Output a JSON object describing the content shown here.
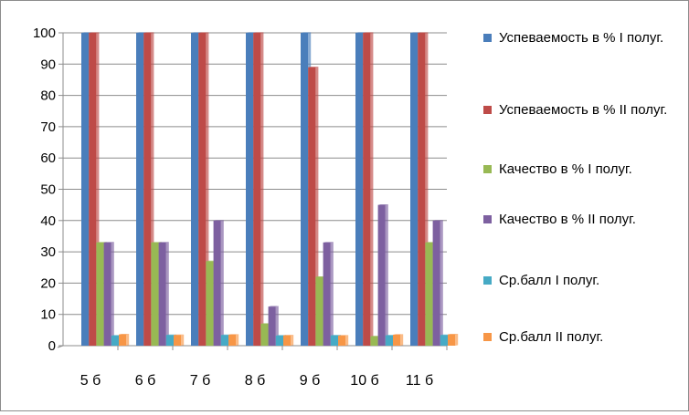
{
  "chart_data": {
    "type": "bar",
    "title": "",
    "xlabel": "",
    "ylabel": "",
    "categories": [
      "5 б",
      "6 б",
      "7 б",
      "8 б",
      "9 б",
      "10 б",
      "11 б"
    ],
    "ylim": [
      0,
      100
    ],
    "yticks": [
      0,
      10,
      20,
      30,
      40,
      50,
      60,
      70,
      80,
      90,
      100
    ],
    "grid": true,
    "legend_position": "right",
    "series": [
      {
        "name": "Успеваемость в % I полуг.",
        "color": "#4a7ebb",
        "values": [
          100,
          100,
          100,
          100,
          100,
          100,
          100
        ]
      },
      {
        "name": "Успеваемость в % II полуг.",
        "color": "#be4b48",
        "values": [
          100,
          100,
          100,
          100,
          89,
          100,
          100
        ]
      },
      {
        "name": "Качество в % I полуг.",
        "color": "#98b954",
        "values": [
          33,
          33,
          27,
          7,
          22,
          3,
          33
        ]
      },
      {
        "name": "Качество в % II полуг.",
        "color": "#7d60a0",
        "values": [
          33,
          33,
          40,
          12.5,
          33,
          45,
          40
        ]
      },
      {
        "name": "Ср.балл I полуг.",
        "color": "#46aac5",
        "values": [
          3.2,
          3.4,
          3.4,
          3.2,
          3.3,
          3.3,
          3.4
        ]
      },
      {
        "name": "Ср.балл II полуг.",
        "color": "#f79646",
        "values": [
          3.6,
          3.4,
          3.5,
          3.3,
          3.2,
          3.5,
          3.6
        ]
      }
    ]
  }
}
